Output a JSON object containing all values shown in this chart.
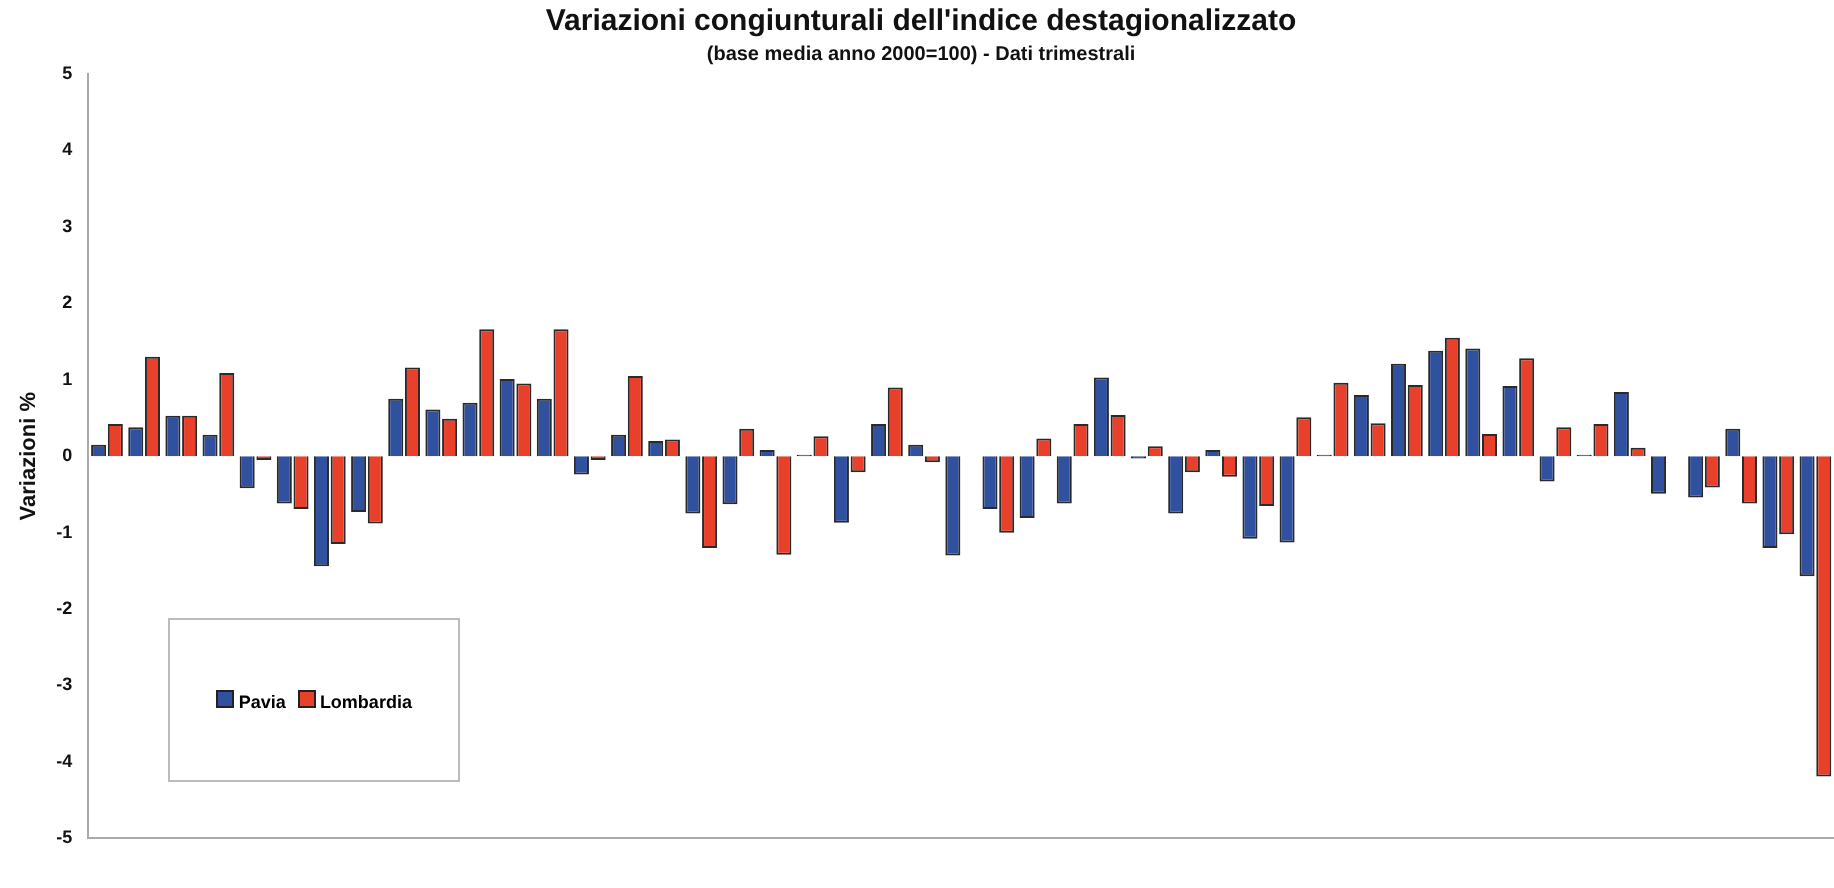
{
  "chart_data": {
    "type": "bar",
    "title": "Variazioni congiunturali dell'indice destagionalizzato",
    "subtitle": "(base media anno 2000=100) - Dati trimestrali",
    "ylabel": "Variazioni %",
    "categories": [
      null,
      null,
      null,
      null,
      null,
      null,
      null,
      null,
      null,
      null,
      null,
      null,
      null,
      null,
      null,
      null,
      null,
      null,
      null,
      null,
      null,
      null,
      null,
      null,
      null,
      null,
      null,
      null,
      null,
      null,
      null,
      null,
      null,
      null,
      null,
      null,
      null,
      null,
      null,
      null,
      null,
      null,
      null,
      null,
      null,
      null,
      null
    ],
    "series": [
      {
        "name": "Pavia",
        "color": "#3050a0",
        "values": [
          0.15,
          0.38,
          0.53,
          0.28,
          -0.42,
          -0.62,
          -1.44,
          -0.73,
          0.75,
          0.61,
          0.7,
          1.01,
          0.75,
          -0.24,
          0.28,
          0.2,
          -0.75,
          -0.63,
          0.08,
          0.02,
          -0.87,
          0.42,
          0.15,
          -1.3,
          -0.69,
          -0.81,
          -0.62,
          1.03,
          -0.03,
          -0.75,
          0.08,
          -1.08,
          -1.13,
          0.02,
          0.8,
          1.21,
          1.38,
          1.41,
          0.92,
          -0.33,
          0.02,
          0.84,
          -0.49,
          -0.54,
          0.36,
          -1.2,
          -1.57
        ]
      },
      {
        "name": "Lombardia",
        "color": "#e8402a",
        "values": [
          0.42,
          1.3,
          0.53,
          1.09,
          -0.05,
          -0.69,
          -1.15,
          -0.88,
          1.16,
          0.49,
          1.66,
          0.95,
          1.66,
          -0.05,
          1.05,
          0.22,
          -1.2,
          0.36,
          -1.29,
          0.26,
          -0.21,
          0.9,
          -0.08,
          0,
          -1.0,
          0.23,
          0.42,
          0.54,
          0.13,
          -0.21,
          -0.27,
          -0.65,
          0.51,
          0.96,
          0.43,
          0.93,
          1.55,
          0.29,
          1.28,
          0.38,
          0.42,
          0.11,
          0,
          -0.41,
          -0.62,
          -1.02,
          -4.19
        ]
      }
    ],
    "ylim": [
      -5,
      5
    ],
    "yticks": [
      -5,
      -4,
      -3,
      -2,
      -1,
      0,
      1,
      2,
      3,
      4,
      5
    ],
    "grid": false,
    "legend": "bottom left"
  }
}
